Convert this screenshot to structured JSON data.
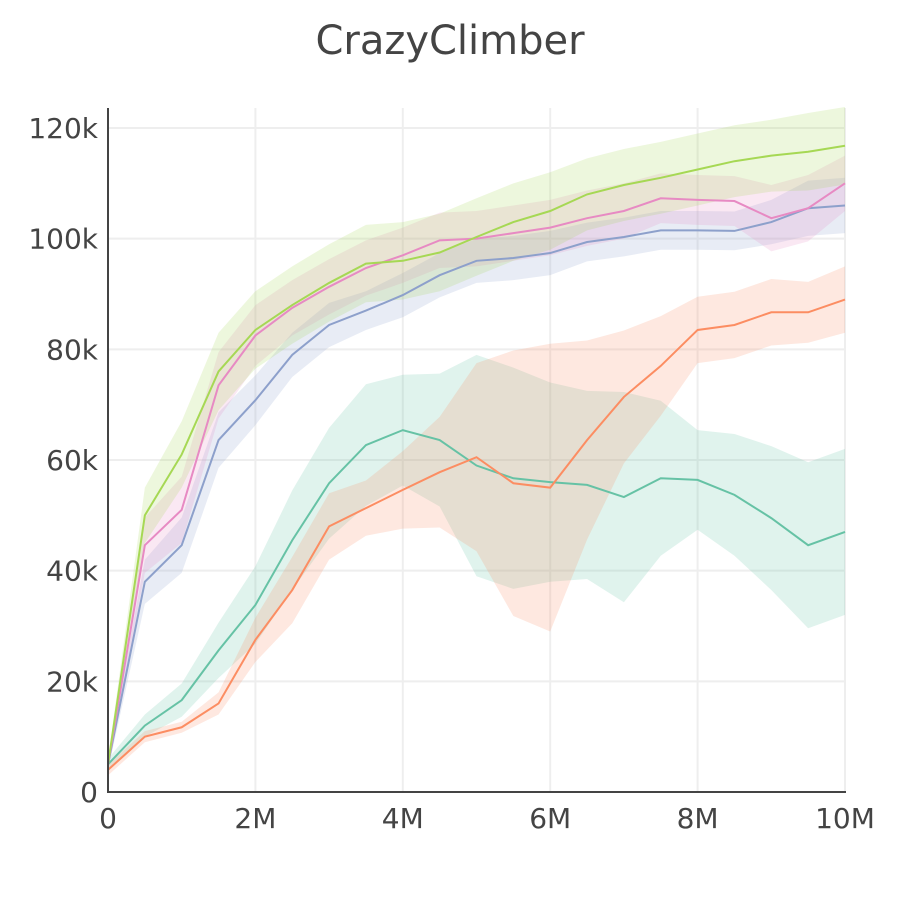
{
  "chart_data": {
    "type": "line",
    "title": "CrazyClimber",
    "xlabel": "",
    "ylabel": "",
    "xlim": [
      0,
      10000000
    ],
    "ylim": [
      0,
      124000
    ],
    "grid": true,
    "x_ticks": [
      {
        "v": 0,
        "label": "0"
      },
      {
        "v": 2000000,
        "label": "2M"
      },
      {
        "v": 4000000,
        "label": "4M"
      },
      {
        "v": 6000000,
        "label": "6M"
      },
      {
        "v": 8000000,
        "label": "8M"
      },
      {
        "v": 10000000,
        "label": "10M"
      }
    ],
    "y_ticks": [
      {
        "v": 0,
        "label": "0"
      },
      {
        "v": 20000,
        "label": "20k"
      },
      {
        "v": 40000,
        "label": "40k"
      },
      {
        "v": 60000,
        "label": "60k"
      },
      {
        "v": 80000,
        "label": "80k"
      },
      {
        "v": 100000,
        "label": "100k"
      },
      {
        "v": 120000,
        "label": "120k"
      }
    ],
    "x": [
      0,
      500000,
      1000000,
      1500000,
      2000000,
      2500000,
      3000000,
      3500000,
      4000000,
      4500000,
      5000000,
      5500000,
      6000000,
      6500000,
      7000000,
      7500000,
      8000000,
      8500000,
      9000000,
      9500000,
      10000000
    ],
    "series": [
      {
        "color": "#66c2a5",
        "values": [
          5000,
          12000,
          16600,
          25600,
          33800,
          45500,
          55800,
          62700,
          65400,
          63600,
          59000,
          56700,
          56000,
          55500,
          53300,
          56700,
          56400,
          53700,
          49500,
          44600,
          47000
        ],
        "band": [
          1000,
          2000,
          3000,
          5000,
          7000,
          9000,
          10000,
          11000,
          10000,
          12000,
          20000,
          20000,
          18000,
          17000,
          19000,
          14000,
          9000,
          11000,
          13000,
          15000,
          15000
        ]
      },
      {
        "color": "#fc8d62",
        "values": [
          4000,
          10000,
          11700,
          16000,
          27500,
          36500,
          48000,
          51300,
          54600,
          57800,
          60500,
          55800,
          55000,
          63600,
          71400,
          77000,
          83500,
          84400,
          86700,
          86700,
          89000
        ],
        "band": [
          1000,
          1000,
          1000,
          2000,
          4000,
          6000,
          6000,
          5000,
          7000,
          10000,
          17000,
          24000,
          26000,
          18000,
          12000,
          9000,
          6000,
          6000,
          6000,
          5500,
          6000
        ]
      },
      {
        "color": "#8da0cb",
        "values": [
          5000,
          38000,
          44600,
          63600,
          70800,
          79000,
          84400,
          87000,
          89800,
          93400,
          96000,
          96500,
          97400,
          99400,
          100300,
          101500,
          101500,
          101400,
          103000,
          105500,
          106000
        ],
        "band": [
          1000,
          4000,
          5000,
          5000,
          4500,
          4000,
          4000,
          3500,
          4000,
          4000,
          4000,
          4000,
          4000,
          3500,
          3500,
          3500,
          3500,
          3500,
          4000,
          5000,
          5000
        ]
      },
      {
        "color": "#e78ac3",
        "values": [
          5000,
          44600,
          51000,
          73500,
          82500,
          87500,
          91300,
          94700,
          97000,
          99700,
          100000,
          101000,
          102000,
          103700,
          105000,
          107300,
          107000,
          106800,
          103700,
          105500,
          110000
        ],
        "band": [
          1000,
          5000,
          6000,
          6000,
          5500,
          5000,
          5000,
          5000,
          5000,
          5000,
          5000,
          5000,
          5000,
          5000,
          5000,
          4500,
          4500,
          4500,
          6000,
          6000,
          5000
        ]
      },
      {
        "color": "#a6d854",
        "values": [
          5000,
          50000,
          61000,
          76000,
          83500,
          88000,
          92000,
          95500,
          96000,
          97500,
          100300,
          103000,
          105000,
          108000,
          109700,
          111000,
          112500,
          114000,
          115000,
          115700,
          116800
        ],
        "band": [
          1000,
          5000,
          6000,
          7000,
          7000,
          7000,
          7000,
          7000,
          7000,
          7000,
          7000,
          7000,
          7000,
          6500,
          6500,
          6500,
          6500,
          6500,
          6500,
          7000,
          7000
        ]
      }
    ]
  }
}
